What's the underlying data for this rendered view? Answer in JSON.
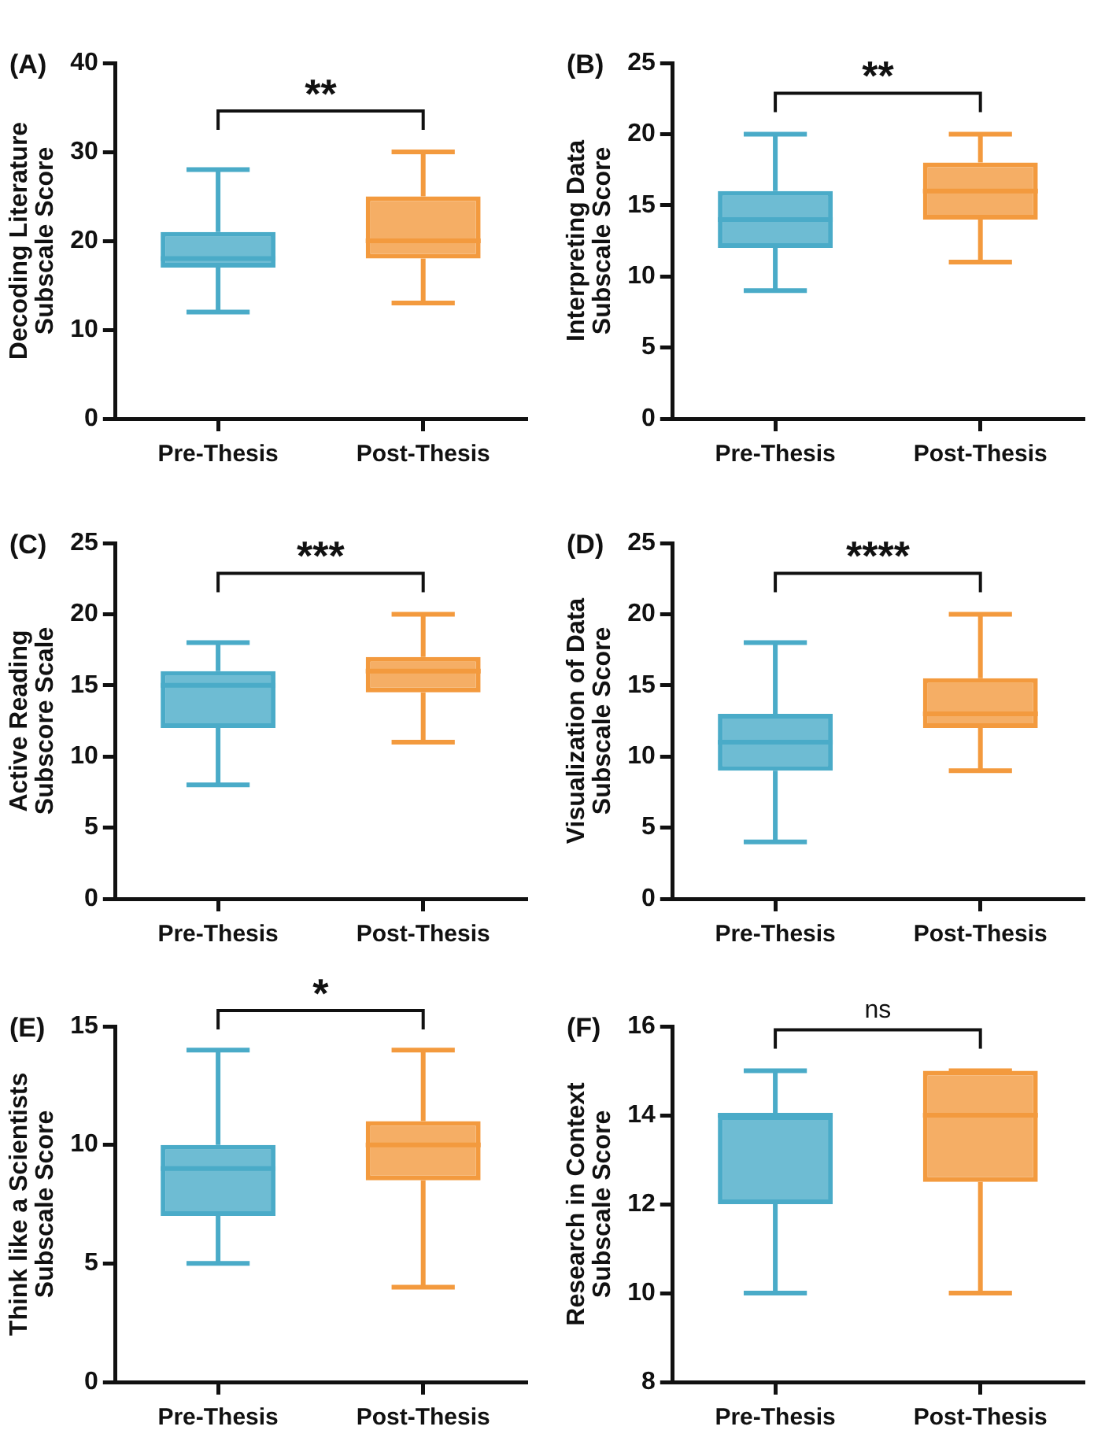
{
  "chart_data": [
    {
      "type": "box",
      "title": "(A)",
      "ylabel": "Decoding Literature\nSubscale Score",
      "categories": [
        "Pre-Thesis",
        "Post-Thesis"
      ],
      "colors": [
        "#4aabc8",
        "#f39a3e"
      ],
      "ylim": [
        0,
        40
      ],
      "yticks": [
        0,
        10,
        20,
        30,
        40
      ],
      "annotations": [
        "**"
      ],
      "boxes": [
        {
          "low": 12,
          "q1": 17,
          "median": 18,
          "q3": 21,
          "high": 28
        },
        {
          "low": 13,
          "q1": 18,
          "median": 20,
          "q3": 25,
          "high": 30
        }
      ]
    },
    {
      "type": "box",
      "title": "(B)",
      "ylabel": "Interpreting Data\nSubscale Score",
      "categories": [
        "Pre-Thesis",
        "Post-Thesis"
      ],
      "colors": [
        "#4aabc8",
        "#f39a3e"
      ],
      "ylim": [
        0,
        25
      ],
      "yticks": [
        0,
        5,
        10,
        15,
        20,
        25
      ],
      "annotations": [
        "**"
      ],
      "boxes": [
        {
          "low": 9,
          "q1": 12,
          "median": 14,
          "q3": 16,
          "high": 20
        },
        {
          "low": 11,
          "q1": 14,
          "median": 16,
          "q3": 18,
          "high": 20
        }
      ]
    },
    {
      "type": "box",
      "title": "(C)",
      "ylabel": "Active Reading\nSubscore Scale",
      "categories": [
        "Pre-Thesis",
        "Post-Thesis"
      ],
      "colors": [
        "#4aabc8",
        "#f39a3e"
      ],
      "ylim": [
        0,
        25
      ],
      "yticks": [
        0,
        5,
        10,
        15,
        20,
        25
      ],
      "annotations": [
        "***"
      ],
      "boxes": [
        {
          "low": 8,
          "q1": 12,
          "median": 15,
          "q3": 16,
          "high": 18
        },
        {
          "low": 11,
          "q1": 14.5,
          "median": 16,
          "q3": 17,
          "high": 20
        }
      ]
    },
    {
      "type": "box",
      "title": "(D)",
      "ylabel": "Visualization of Data\nSubscale Score",
      "categories": [
        "Pre-Thesis",
        "Post-Thesis"
      ],
      "colors": [
        "#4aabc8",
        "#f39a3e"
      ],
      "ylim": [
        0,
        25
      ],
      "yticks": [
        0,
        5,
        10,
        15,
        20,
        25
      ],
      "annotations": [
        "****"
      ],
      "boxes": [
        {
          "low": 4,
          "q1": 9,
          "median": 11,
          "q3": 13,
          "high": 18
        },
        {
          "low": 9,
          "q1": 12,
          "median": 13,
          "q3": 15.5,
          "high": 20
        }
      ]
    },
    {
      "type": "box",
      "title": "(E)",
      "ylabel": "Think like a Scientists\nSubscale Score",
      "categories": [
        "Pre-Thesis",
        "Post-Thesis"
      ],
      "colors": [
        "#4aabc8",
        "#f39a3e"
      ],
      "ylim": [
        0,
        15
      ],
      "yticks": [
        0,
        5,
        10,
        15
      ],
      "annotations": [
        "*"
      ],
      "boxes": [
        {
          "low": 5,
          "q1": 7,
          "median": 9,
          "q3": 10,
          "high": 14
        },
        {
          "low": 4,
          "q1": 8.5,
          "median": 10,
          "q3": 11,
          "high": 14
        }
      ]
    },
    {
      "type": "box",
      "title": "(F)",
      "ylabel": "Research in Context\nSubscale Score",
      "categories": [
        "Pre-Thesis",
        "Post-Thesis"
      ],
      "colors": [
        "#4aabc8",
        "#f39a3e"
      ],
      "ylim": [
        8,
        16
      ],
      "yticks": [
        8,
        10,
        12,
        14,
        16
      ],
      "annotations": [
        "ns"
      ],
      "boxes": [
        {
          "low": 10,
          "q1": 12,
          "median": 14,
          "q3": 14,
          "high": 15
        },
        {
          "low": 10,
          "q1": 12.5,
          "median": 14,
          "q3": 15,
          "high": 15
        }
      ]
    }
  ]
}
